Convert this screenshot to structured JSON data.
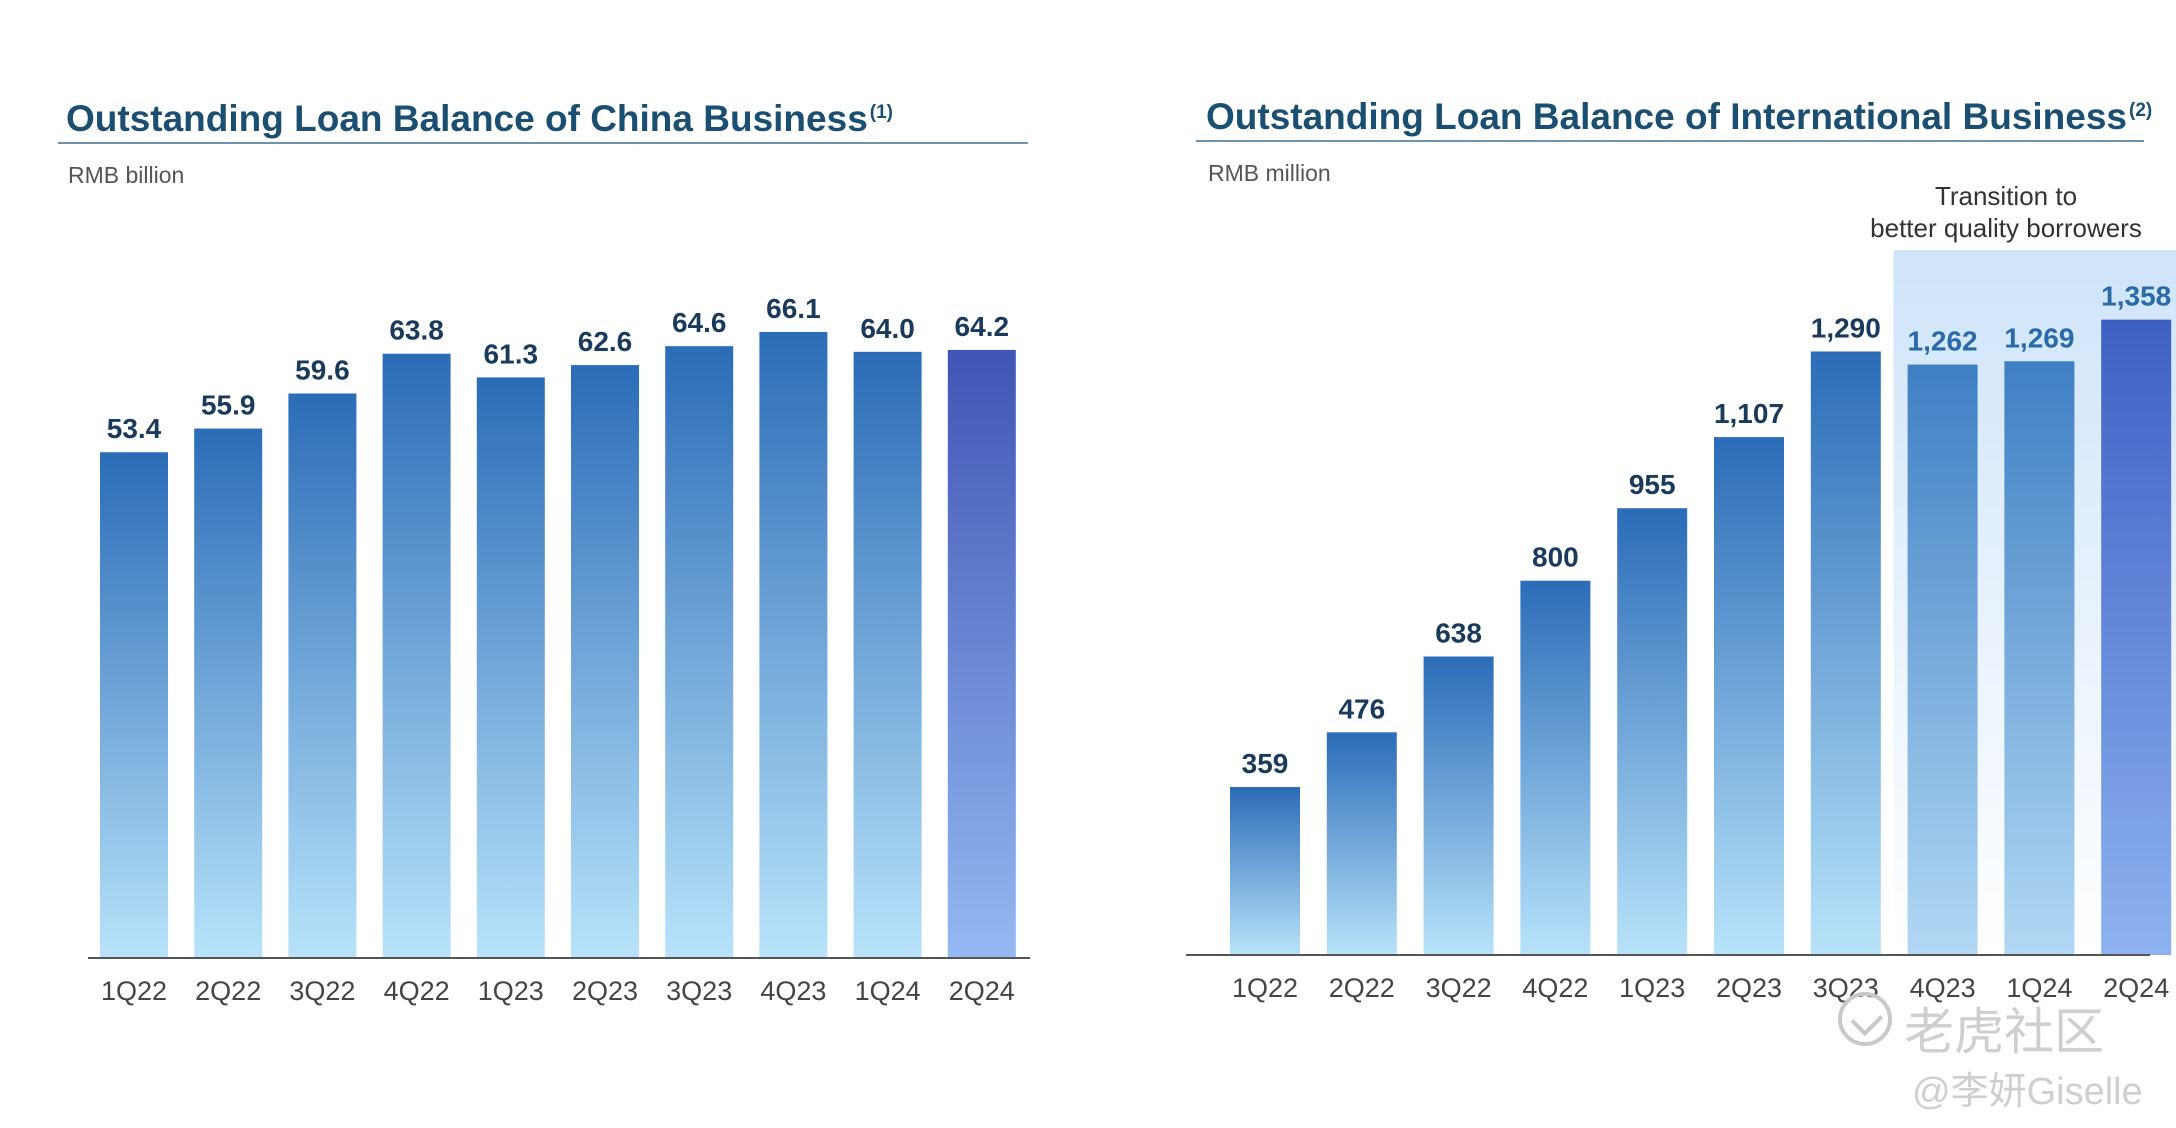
{
  "watermark": {
    "brand": "老虎社区",
    "author": "@李妍Giselle"
  },
  "chart_data": [
    {
      "type": "bar",
      "title": "Outstanding Loan Balance of China Business",
      "title_footnote": "(1)",
      "unit": "RMB billion",
      "categories": [
        "1Q22",
        "2Q22",
        "3Q22",
        "4Q22",
        "1Q23",
        "2Q23",
        "3Q23",
        "4Q23",
        "1Q24",
        "2Q24"
      ],
      "values": [
        53.4,
        55.9,
        59.6,
        63.8,
        61.3,
        62.6,
        64.6,
        66.1,
        64.0,
        64.2
      ],
      "value_labels": [
        "53.4",
        "55.9",
        "59.6",
        "63.8",
        "61.3",
        "62.6",
        "64.6",
        "66.1",
        "64.0",
        "64.2"
      ],
      "ylim": [
        0,
        70
      ],
      "grid": false,
      "legend": "none",
      "highlight_index": 9,
      "colors": {
        "bar_top": "#2b6cb8",
        "bar_bottom": "#b8e3fa",
        "highlight_top": "#3f55b5",
        "highlight_bottom": "#94b9f2",
        "label": "#1a3a5c",
        "axis": "#555555",
        "tick": "#444444"
      }
    },
    {
      "type": "bar",
      "title": "Outstanding Loan Balance of International Business",
      "title_footnote": "(2)",
      "unit": "RMB million",
      "categories": [
        "1Q22",
        "2Q22",
        "3Q22",
        "4Q22",
        "1Q23",
        "2Q23",
        "3Q23",
        "4Q23",
        "1Q24",
        "2Q24"
      ],
      "values": [
        359,
        476,
        638,
        800,
        955,
        1107,
        1290,
        1262,
        1269,
        1358
      ],
      "value_labels": [
        "359",
        "476",
        "638",
        "800",
        "955",
        "1,107",
        "1,290",
        "1,262",
        "1,269",
        "1,358"
      ],
      "ylim": [
        0,
        1400
      ],
      "grid": false,
      "legend": "none",
      "highlight_index": 9,
      "shaded_range": [
        7,
        9
      ],
      "annotation": {
        "lines": [
          "Transition to",
          "better quality borrowers"
        ]
      },
      "colors": {
        "bar_top": "#2b6cb8",
        "bar_bottom": "#b8e3fa",
        "shaded_bar_top": "#3f7fc4",
        "shaded_bar_bottom": "#b2d8f4",
        "highlight_top": "#3f5fc4",
        "highlight_bottom": "#8eb2f0",
        "shade_top": "#cfe4fa",
        "shade_bottom": "#ffffff",
        "label": "#1a3a5c",
        "shaded_label": "#2a6aa8",
        "axis": "#555555",
        "tick": "#444444"
      }
    }
  ]
}
